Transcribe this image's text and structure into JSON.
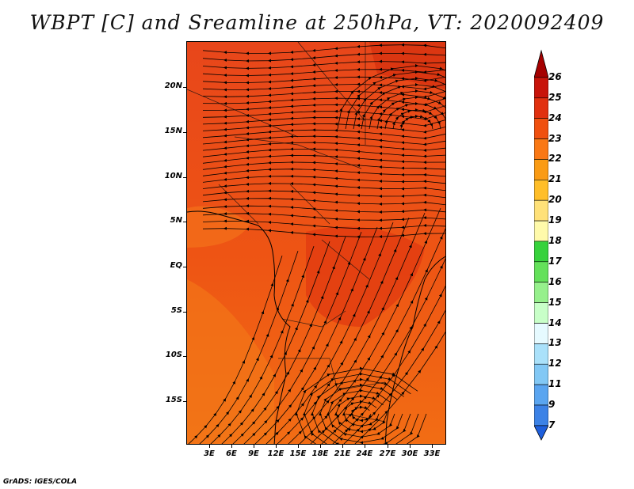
{
  "title": "WBPT [C] and Sreamline at 250hPa, VT: 2020092409",
  "footer": "GrADS: IGES/COLA",
  "map": {
    "lat_ticks": [
      "20N",
      "15N",
      "10N",
      "5N",
      "EQ",
      "5S",
      "10S",
      "15S"
    ],
    "lon_ticks": [
      "3E",
      "6E",
      "9E",
      "12E",
      "15E",
      "18E",
      "21E",
      "24E",
      "27E",
      "30E",
      "33E"
    ]
  },
  "colorbar": {
    "labels": [
      "26",
      "25",
      "24",
      "23",
      "22",
      "21",
      "20",
      "19",
      "18",
      "17",
      "16",
      "15",
      "14",
      "13",
      "12",
      "11",
      "9",
      "7"
    ],
    "colors": [
      "#a50000",
      "#c8140a",
      "#e1300f",
      "#f0500f",
      "#fa7814",
      "#fa9b14",
      "#ffbe28",
      "#ffe178",
      "#fffaaa",
      "#37d23c",
      "#64e15a",
      "#96f08c",
      "#c8ffc8",
      "#e6faff",
      "#aae1fa",
      "#82c8f5",
      "#5aa5f0",
      "#3c82e6",
      "#1e5fdc"
    ]
  }
}
